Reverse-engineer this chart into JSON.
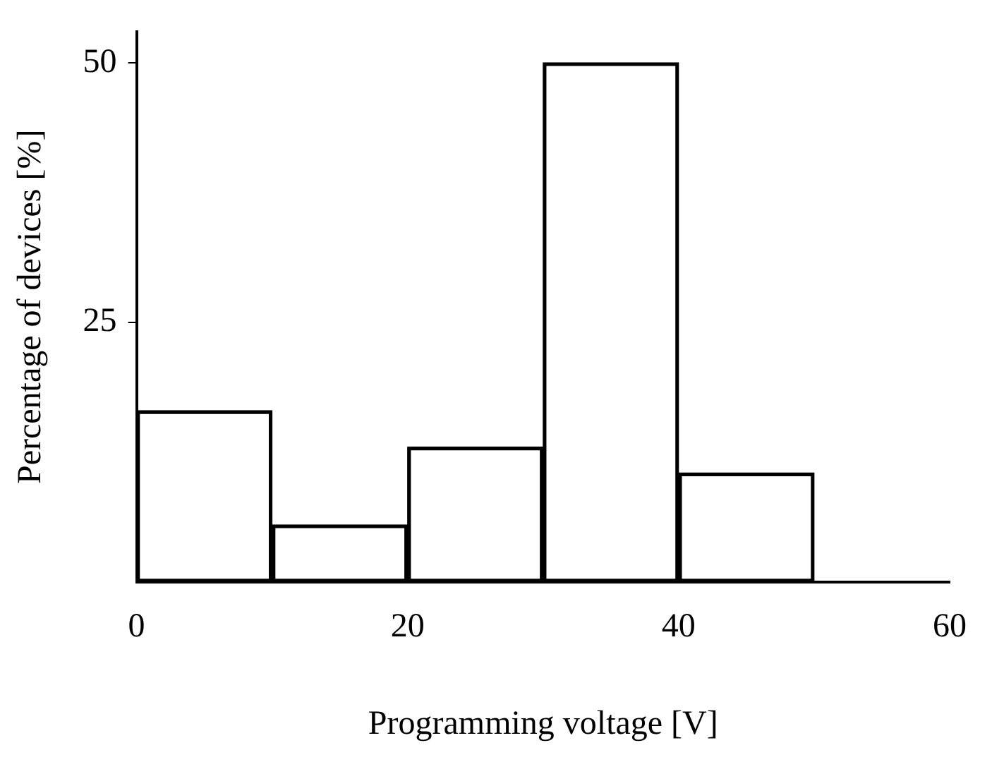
{
  "chart_data": {
    "type": "histogram",
    "xlabel": "Programming voltage [V]",
    "ylabel": "Percentage of devices [%]",
    "bins": [
      0,
      10,
      20,
      30,
      40,
      50
    ],
    "values": [
      16.5,
      5.5,
      13,
      50,
      10.5
    ],
    "color": "#000000",
    "xlim": [
      0,
      60
    ],
    "xticks": [
      0,
      20,
      40,
      60
    ],
    "ylim": [
      0,
      53
    ],
    "yticks": [
      25,
      50
    ],
    "grid": false,
    "legend": false
  }
}
